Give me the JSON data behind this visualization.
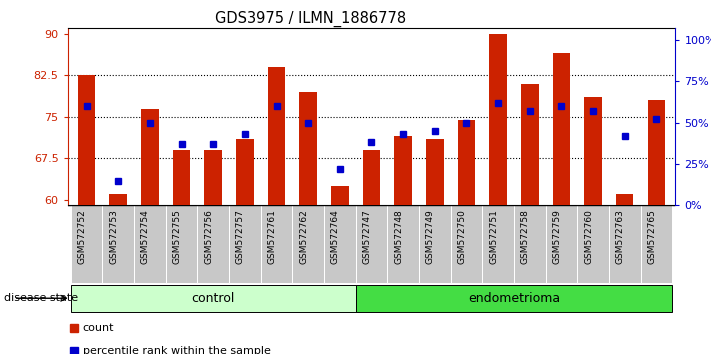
{
  "title": "GDS3975 / ILMN_1886778",
  "samples": [
    "GSM572752",
    "GSM572753",
    "GSM572754",
    "GSM572755",
    "GSM572756",
    "GSM572757",
    "GSM572761",
    "GSM572762",
    "GSM572764",
    "GSM572747",
    "GSM572748",
    "GSM572749",
    "GSM572750",
    "GSM572751",
    "GSM572758",
    "GSM572759",
    "GSM572760",
    "GSM572763",
    "GSM572765"
  ],
  "counts": [
    82.5,
    61.0,
    76.5,
    69.0,
    69.0,
    71.0,
    84.0,
    79.5,
    62.5,
    69.0,
    71.5,
    71.0,
    74.5,
    90.0,
    81.0,
    86.5,
    78.5,
    61.0,
    78.0
  ],
  "percentile_pct": [
    60,
    15,
    50,
    37,
    37,
    43,
    60,
    50,
    22,
    38,
    43,
    45,
    50,
    62,
    57,
    60,
    57,
    42,
    52
  ],
  "groups": [
    "control",
    "control",
    "control",
    "control",
    "control",
    "control",
    "control",
    "control",
    "control",
    "endometrioma",
    "endometrioma",
    "endometrioma",
    "endometrioma",
    "endometrioma",
    "endometrioma",
    "endometrioma",
    "endometrioma",
    "endometrioma",
    "endometrioma"
  ],
  "bar_color": "#cc2200",
  "dot_color": "#0000cc",
  "ylim_left": [
    59,
    91
  ],
  "ylim_right": [
    0,
    107
  ],
  "yticks_left": [
    60,
    67.5,
    75,
    82.5,
    90
  ],
  "yticks_right": [
    0,
    25,
    50,
    75,
    100
  ],
  "ytick_labels_right": [
    "0%",
    "25%",
    "50%",
    "75%",
    "100%"
  ],
  "hlines": [
    67.5,
    75.0,
    82.5
  ],
  "control_color": "#ccffcc",
  "endometrioma_color": "#44dd44",
  "bar_width": 0.55
}
